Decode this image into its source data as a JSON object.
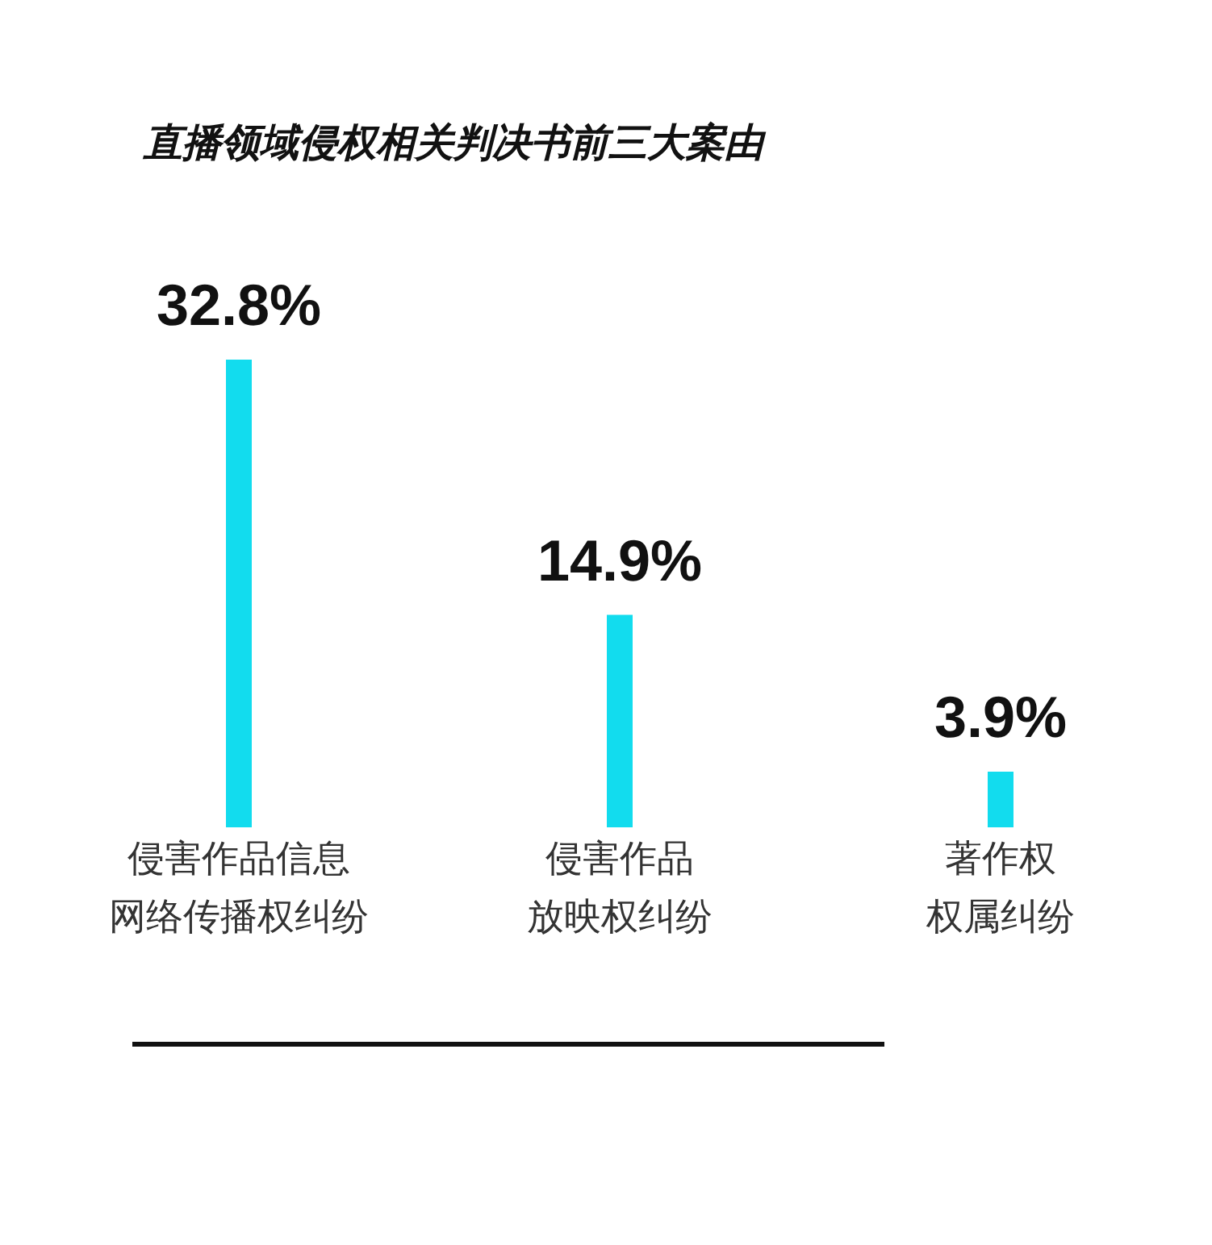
{
  "chart_data": {
    "type": "bar",
    "title": "直播领域侵权相关判决书前三大案由",
    "categories": [
      "侵害作品信息网络传播权纠纷",
      "侵害作品放映权纠纷",
      "著作权权属纠纷"
    ],
    "values": [
      32.8,
      14.9,
      3.9
    ],
    "value_labels": [
      "32.8%",
      "14.9%",
      "3.9%"
    ],
    "color": "#12dcee",
    "tick_labels": "x"
  }
}
